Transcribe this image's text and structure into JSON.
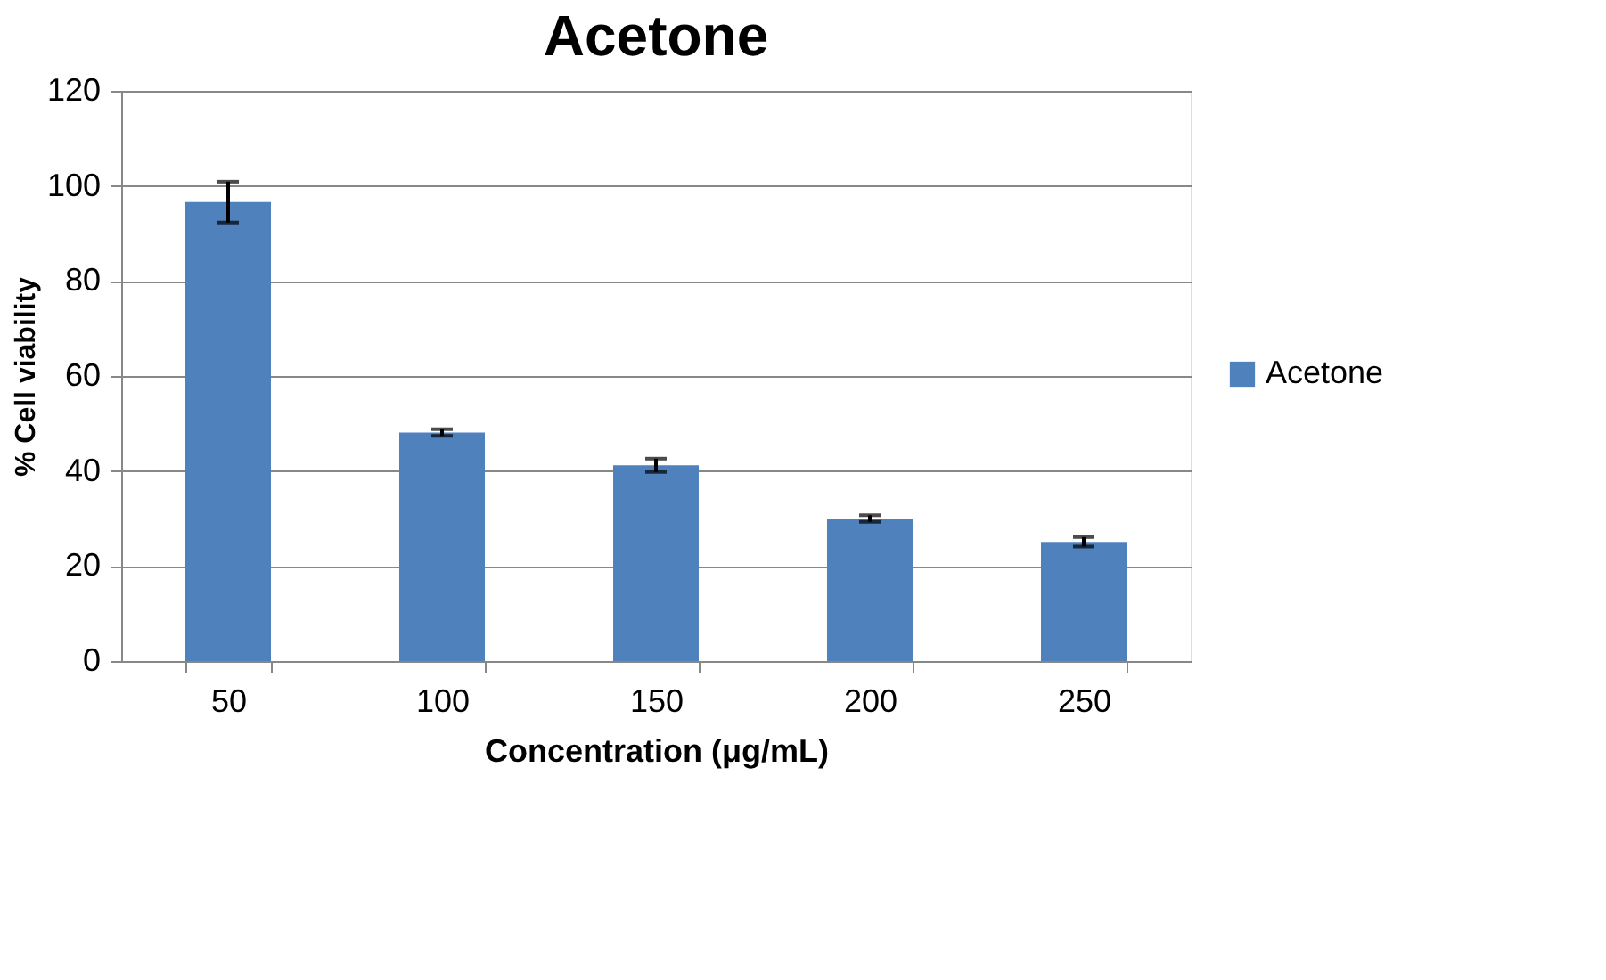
{
  "chart_data": {
    "type": "bar",
    "title": "Acetone",
    "xlabel": "Concentration (μg/mL)",
    "ylabel": "% Cell viability",
    "categories": [
      "50",
      "100",
      "150",
      "200",
      "250"
    ],
    "series": [
      {
        "name": "Acetone",
        "color": "#4f81bd",
        "values": [
          96.6,
          48.1,
          41.2,
          30.0,
          25.1
        ],
        "errors": [
          4.3,
          0.7,
          1.4,
          0.7,
          1.0
        ]
      }
    ],
    "ylim": [
      0,
      120
    ],
    "yticks": [
      0,
      20,
      40,
      60,
      80,
      100,
      120
    ],
    "grid": "y",
    "legend": "right"
  }
}
